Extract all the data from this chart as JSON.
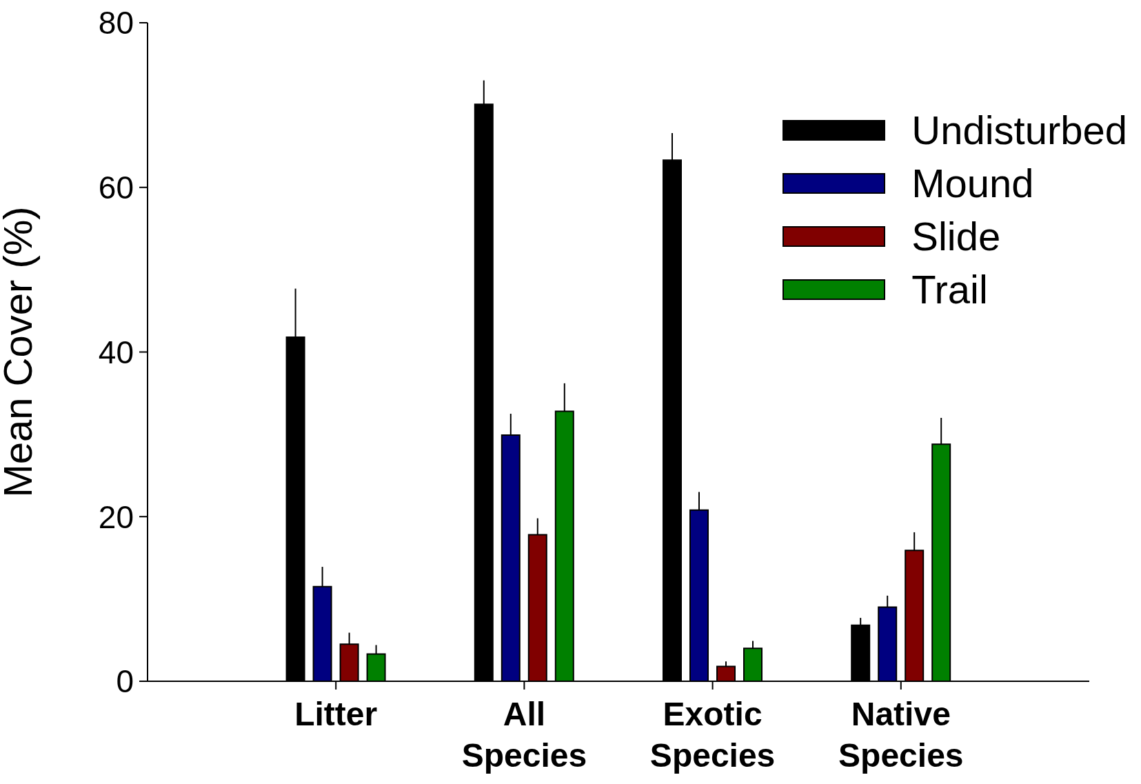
{
  "chart_data": {
    "type": "bar",
    "ylabel": "Mean Cover (%)",
    "categories": [
      "Litter",
      "All Species",
      "Exotic Species",
      "Native Species"
    ],
    "series": [
      {
        "name": "Undisturbed",
        "color": "#000000",
        "values": [
          41.8,
          70.1,
          63.3,
          6.8
        ],
        "errors": [
          [
            41.8,
            47.7
          ],
          [
            70.1,
            73.0
          ],
          [
            63.3,
            66.6
          ],
          [
            6.8,
            7.7
          ]
        ]
      },
      {
        "name": "Mound",
        "color": "#000080",
        "values": [
          11.5,
          29.9,
          20.8,
          9.0
        ],
        "errors": [
          [
            11.5,
            13.9
          ],
          [
            29.9,
            32.5
          ],
          [
            20.8,
            23.0
          ],
          [
            9.0,
            10.4
          ]
        ]
      },
      {
        "name": "Slide",
        "color": "#800000",
        "values": [
          4.5,
          17.8,
          1.8,
          15.9
        ],
        "errors": [
          [
            4.5,
            5.9
          ],
          [
            17.8,
            19.8
          ],
          [
            1.8,
            2.4
          ],
          [
            15.9,
            18.1
          ]
        ]
      },
      {
        "name": "Trail",
        "color": "#008000",
        "values": [
          3.3,
          32.8,
          4.0,
          28.8
        ],
        "errors": [
          [
            3.3,
            4.4
          ],
          [
            32.8,
            36.2
          ],
          [
            4.0,
            4.9
          ],
          [
            28.8,
            32.0
          ]
        ]
      }
    ],
    "ylim": [
      0,
      80
    ],
    "yticks": [
      0,
      20,
      40,
      60,
      80
    ],
    "grid": false,
    "legend": "top right"
  }
}
